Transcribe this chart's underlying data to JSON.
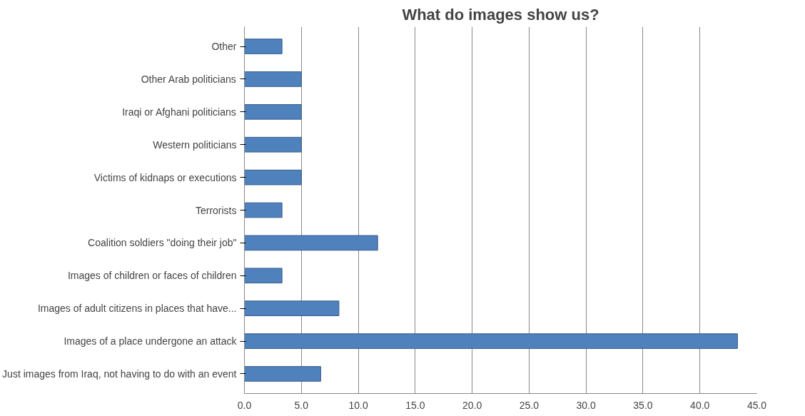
{
  "chart_data": {
    "type": "bar",
    "orientation": "horizontal",
    "title": "What do images show us?",
    "categories": [
      "Other",
      "Other Arab politicians",
      "Iraqi or Afghani politicians",
      "Western politicians",
      "Victims of kidnaps or executions",
      "Terrorists",
      "Coalition soldiers \"doing their job\"",
      "Images of children or faces of children",
      "Images of adult citizens in places that have...",
      "Images of a place undergone an attack",
      "Just images from Iraq, not having to do with an event"
    ],
    "values": [
      3.3,
      5.0,
      5.0,
      5.0,
      5.0,
      3.3,
      11.7,
      3.3,
      8.3,
      43.3,
      6.7
    ],
    "color": "#4f81bd",
    "xlim": [
      0,
      45
    ],
    "xticks": [
      {
        "value": 0,
        "label": "0.0"
      },
      {
        "value": 5,
        "label": "5.0"
      },
      {
        "value": 10,
        "label": "10.0"
      },
      {
        "value": 15,
        "label": "15.0"
      },
      {
        "value": 20,
        "label": "20.0"
      },
      {
        "value": 25,
        "label": "25.0"
      },
      {
        "value": 30,
        "label": "30.0"
      },
      {
        "value": 35,
        "label": "35.0"
      },
      {
        "value": 40,
        "label": "40.0"
      },
      {
        "value": 45,
        "label": "45.0"
      }
    ],
    "grid": "x"
  }
}
